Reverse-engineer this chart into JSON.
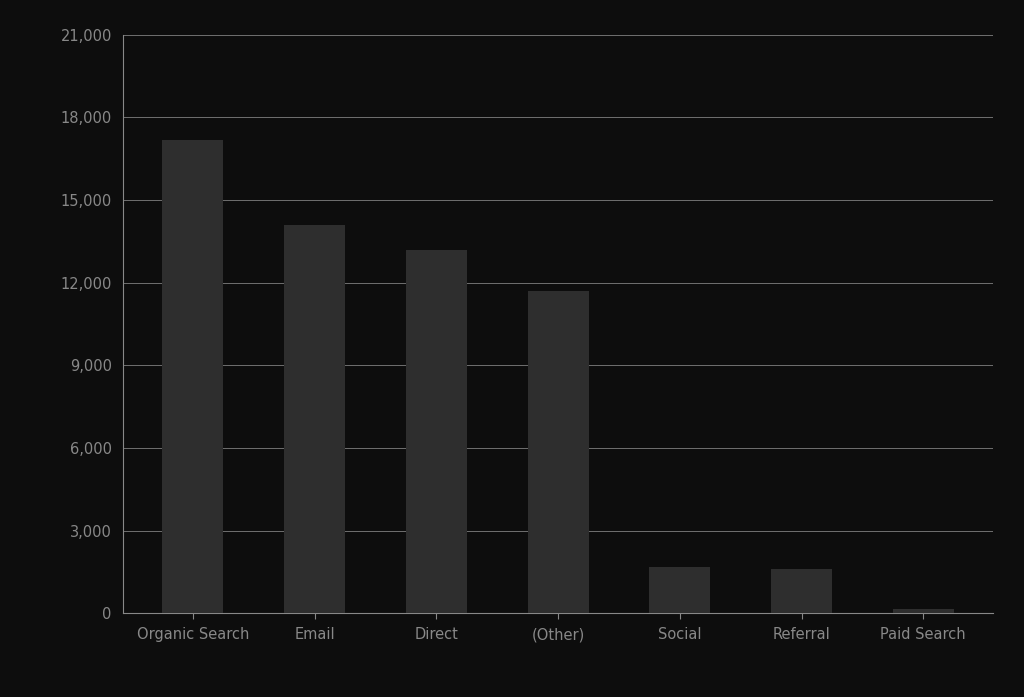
{
  "categories": [
    "Organic Search",
    "Email",
    "Direct",
    "(Other)",
    "Social",
    "Referral",
    "Paid Search"
  ],
  "values": [
    17200,
    14100,
    13200,
    11700,
    1700,
    1600,
    150
  ],
  "bar_color": "#2e2e2e",
  "background_color": "#0d0d0d",
  "text_color": "#888888",
  "grid_color": "#d0d0d0",
  "axis_line_color": "#888888",
  "ylim": [
    0,
    21000
  ],
  "yticks": [
    0,
    3000,
    6000,
    9000,
    12000,
    15000,
    18000,
    21000
  ],
  "ylabel": "",
  "xlabel": "",
  "title": ""
}
